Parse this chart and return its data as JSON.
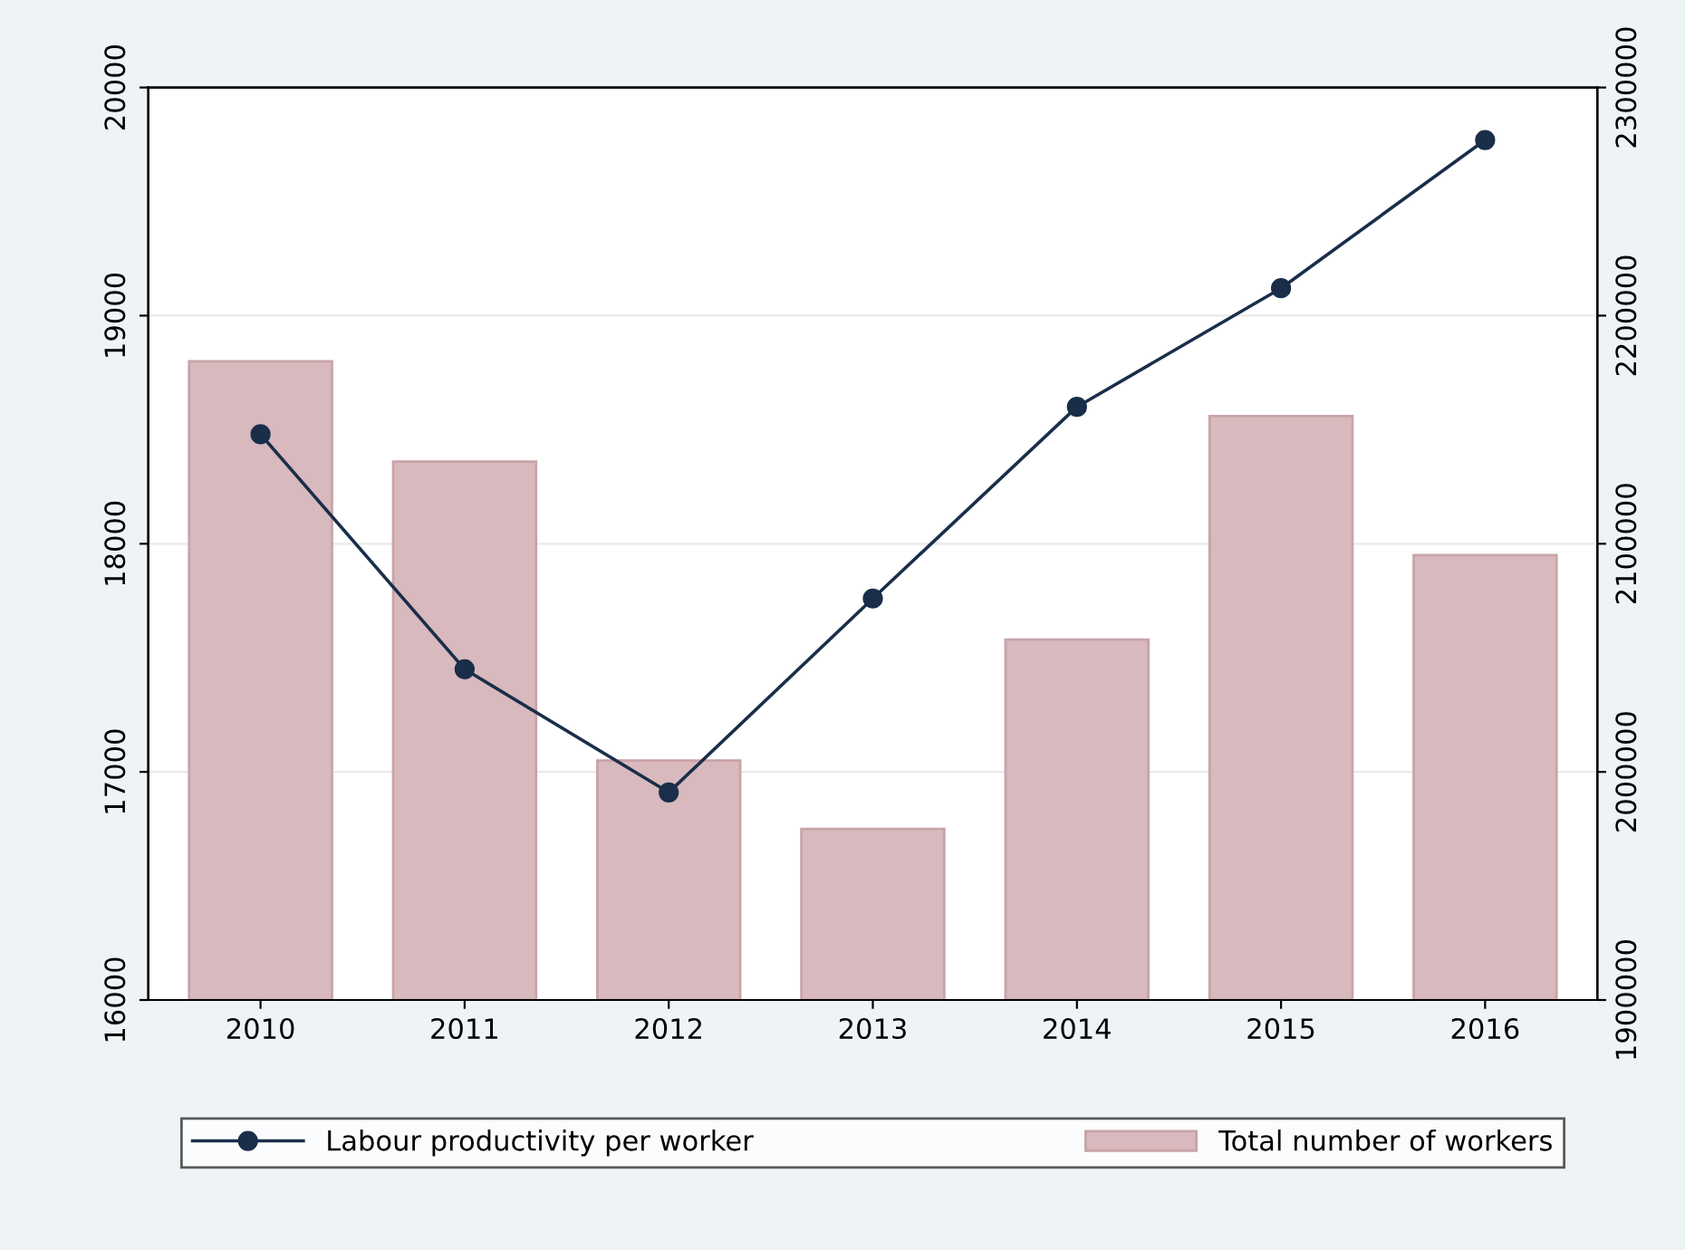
{
  "chart_data": {
    "type": "line",
    "categories": [
      "2010",
      "2011",
      "2012",
      "2013",
      "2014",
      "2015",
      "2016"
    ],
    "series": [
      {
        "name": "Labour productivity per worker",
        "color": "#1a2e4a",
        "values": [
          18480,
          17450,
          16910,
          17760,
          18600,
          19120,
          19770
        ]
      },
      {
        "name": "Total number of workers",
        "type": "bar",
        "axis": "y2",
        "color": "#d8b9bd",
        "values": [
          2180000,
          2136000,
          2005000,
          1975000,
          2058000,
          2156000,
          2095000
        ]
      }
    ],
    "ylim": [
      16000,
      20000
    ],
    "yticks": [
      16000,
      17000,
      18000,
      19000,
      20000
    ],
    "y2lim": [
      1900000,
      2300000
    ],
    "y2ticks": [
      1900000,
      2000000,
      2100000,
      2200000,
      2300000
    ],
    "grid": "y",
    "legend": "bottom",
    "marker": "circle",
    "line_style": "solid"
  }
}
